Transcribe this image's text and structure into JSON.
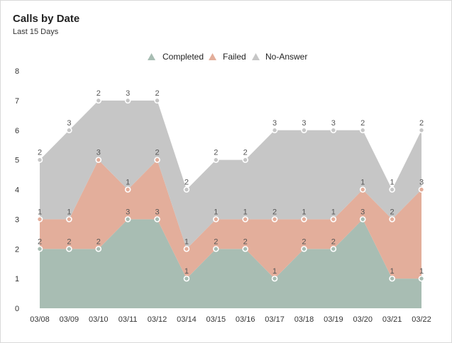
{
  "card": {
    "title": "Calls by Date",
    "subtitle": "Last 15 Days"
  },
  "chart_data": {
    "type": "area",
    "stacked": true,
    "categories": [
      "03/08",
      "03/09",
      "03/10",
      "03/11",
      "03/12",
      "03/14",
      "03/15",
      "03/16",
      "03/17",
      "03/18",
      "03/19",
      "03/20",
      "03/21",
      "03/22"
    ],
    "series": [
      {
        "name": "Completed",
        "color": "#a8bdb3",
        "values": [
          2,
          2,
          2,
          3,
          3,
          1,
          2,
          2,
          1,
          2,
          2,
          3,
          1,
          1
        ]
      },
      {
        "name": "Failed",
        "color": "#e3ae9b",
        "values": [
          1,
          1,
          3,
          1,
          2,
          1,
          1,
          1,
          2,
          1,
          1,
          1,
          2,
          3
        ]
      },
      {
        "name": "No-Answer",
        "color": "#c6c6c6",
        "values": [
          2,
          3,
          2,
          3,
          2,
          2,
          2,
          2,
          3,
          3,
          3,
          2,
          1,
          2
        ]
      }
    ],
    "y_ticks": [
      "0",
      "1",
      "2",
      "3",
      "4",
      "5",
      "6",
      "7",
      "8"
    ],
    "ylim": [
      0,
      8
    ],
    "legend_position": "top-center",
    "grid": false
  }
}
